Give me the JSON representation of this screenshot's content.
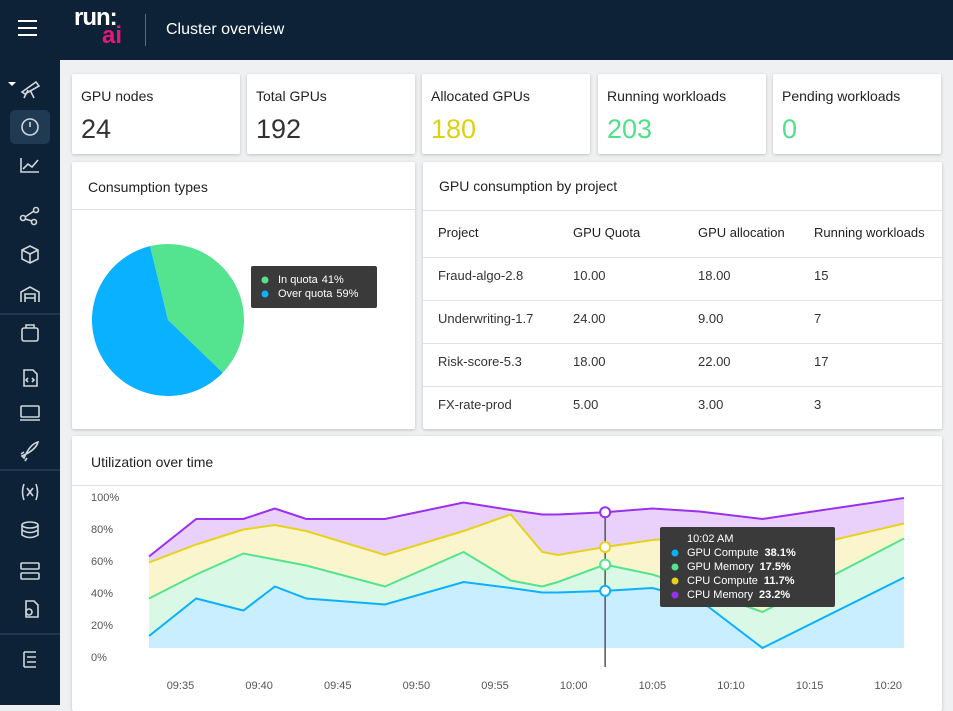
{
  "header": {
    "logo_top": "run:",
    "logo_bottom": "ai",
    "title": "Cluster overview"
  },
  "stats": [
    {
      "label": "GPU nodes",
      "value": 24,
      "color": "#333333"
    },
    {
      "label": "Total GPUs",
      "value": 192,
      "color": "#333333"
    },
    {
      "label": "Allocated GPUs",
      "value": 180,
      "color": "#dcd20f"
    },
    {
      "label": "Running workloads",
      "value": 203,
      "color": "#4fe08a"
    },
    {
      "label": "Pending workloads",
      "value": 0,
      "color": "#4fe08a"
    }
  ],
  "consumption": {
    "title": "Consumption types",
    "chart_data": {
      "type": "pie",
      "categories": [
        "In quota",
        "Over quota"
      ],
      "values": [
        41,
        59
      ],
      "value_labels": [
        "41%",
        "59%"
      ],
      "colors": [
        "#54e38e",
        "#0ab1ff"
      ]
    }
  },
  "projects": {
    "title": "GPU consumption by project",
    "columns": [
      "Project",
      "GPU Quota",
      "GPU allocation",
      "Running workloads"
    ],
    "rows": [
      [
        "Fraud-algo-2.8",
        "10.00",
        "18.00",
        "15"
      ],
      [
        "Underwriting-1.7",
        "24.00",
        "9.00",
        "7"
      ],
      [
        "Risk-score-5.3",
        "18.00",
        "22.00",
        "17"
      ],
      [
        "FX-rate-prod",
        "5.00",
        "3.00",
        "3"
      ]
    ]
  },
  "utilization": {
    "title": "Utilization over time",
    "chart_data": {
      "type": "area",
      "stacked": true,
      "x": [
        "09:33",
        "09:36",
        "09:39",
        "09:41",
        "09:43",
        "09:48",
        "09:53",
        "09:56",
        "09:58",
        "09:59",
        "10:02",
        "10:05",
        "10:08",
        "10:12",
        "10:21"
      ],
      "xlim": [
        "09:33",
        "10:21"
      ],
      "xticks": [
        "09:35",
        "09:40",
        "09:45",
        "09:50",
        "09:55",
        "10:00",
        "10:05",
        "10:10",
        "10:15",
        "10:20"
      ],
      "ylim": [
        0,
        100
      ],
      "yticks": [
        {
          "value": 0,
          "label": "0%"
        },
        {
          "value": 20,
          "label": "20%"
        },
        {
          "value": 40,
          "label": "40%"
        },
        {
          "value": 60,
          "label": "60%"
        },
        {
          "value": 80,
          "label": "80%"
        },
        {
          "value": 100,
          "label": "100%"
        }
      ],
      "series": [
        {
          "name": "GPU Compute",
          "color": "#0ab1ff",
          "values": [
            8,
            33,
            25,
            41,
            33,
            29,
            44,
            40,
            37,
            37,
            38.1,
            40,
            32,
            0,
            47
          ]
        },
        {
          "name": "GPU Memory",
          "color": "#54e38e",
          "values": [
            25,
            16,
            38,
            18,
            22,
            12,
            20,
            5,
            4,
            7,
            17.5,
            9,
            7,
            24,
            26
          ]
        },
        {
          "name": "CPU Compute",
          "color": "#e6d21c",
          "values": [
            24,
            20,
            16,
            23,
            23,
            21,
            14,
            44,
            23,
            18,
            11.7,
            23,
            35,
            37,
            10
          ]
        },
        {
          "name": "CPU Memory",
          "color": "#9b2ff0",
          "values": [
            4,
            17,
            7,
            11,
            8,
            24,
            19,
            3,
            25,
            27,
            23.2,
            21,
            17,
            25,
            17
          ]
        }
      ],
      "tooltip": {
        "title": "10:02 AM",
        "value_labels": [
          "38.1%",
          "17.5%",
          "11.7%",
          "23.2%"
        ]
      }
    }
  }
}
